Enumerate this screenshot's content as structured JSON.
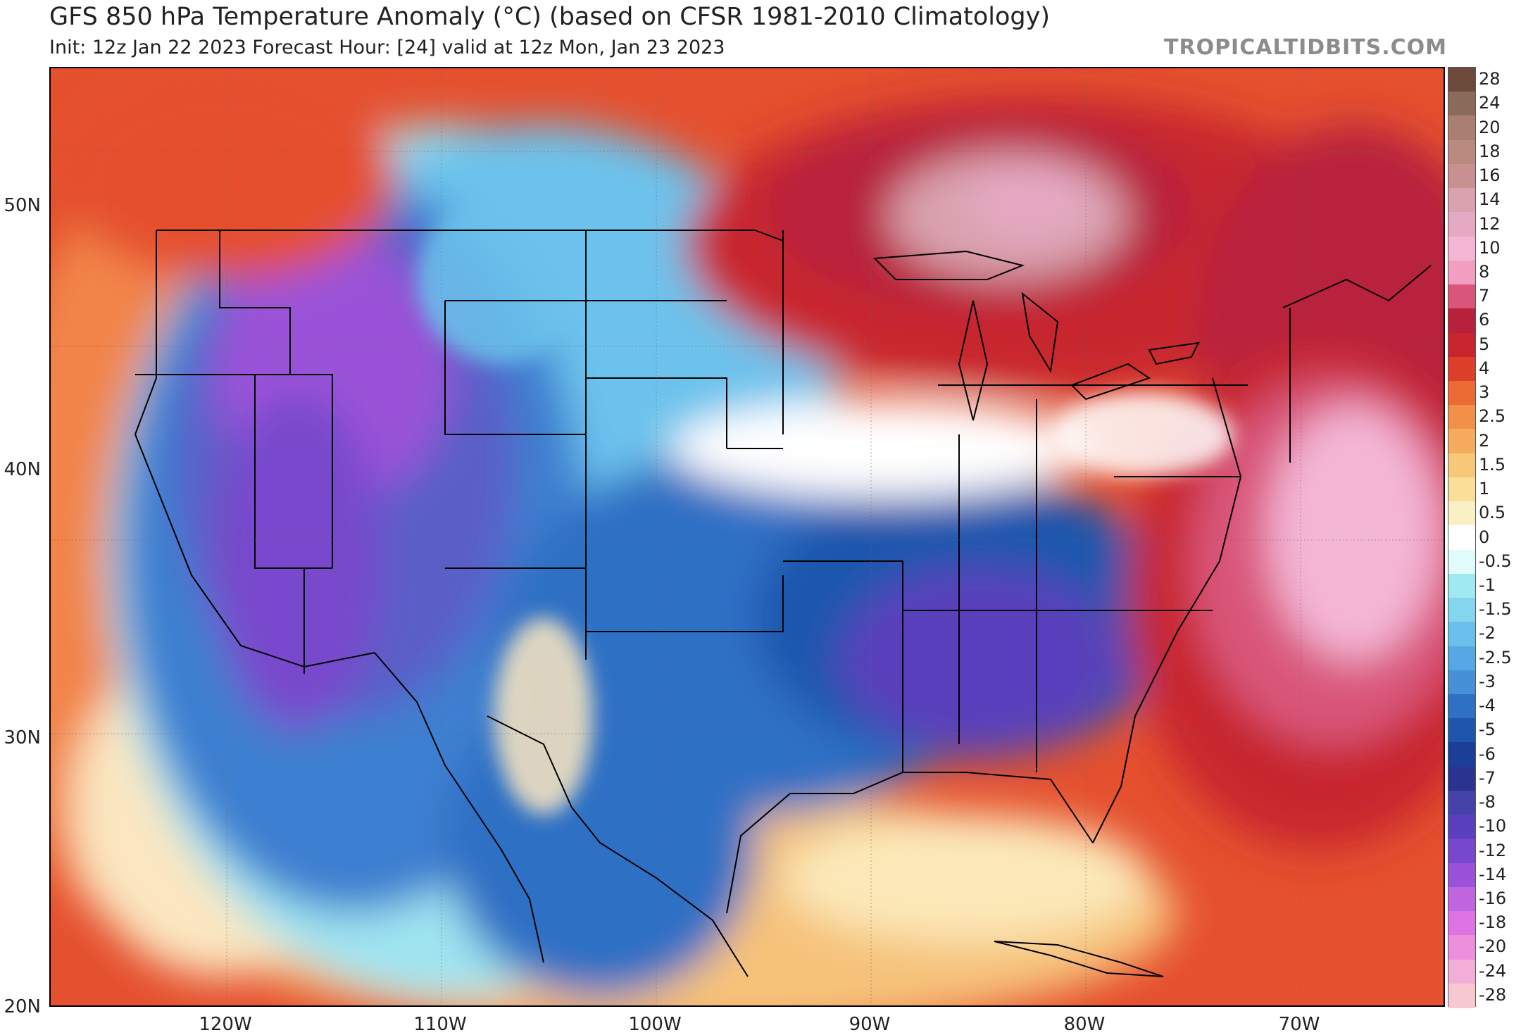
{
  "header": {
    "title": "GFS 850 hPa Temperature Anomaly (°C) (based on CFSR 1981-2010 Climatology)",
    "subtitle": "Init: 12z Jan 22 2023   Forecast Hour: [24]   valid at 12z Mon, Jan 23 2023",
    "watermark": "TROPICALTIDBITS.COM"
  },
  "map": {
    "lat_labels": [
      "50N",
      "40N",
      "30N",
      "20N"
    ],
    "lon_labels": [
      "120W",
      "110W",
      "100W",
      "90W",
      "80W",
      "70W"
    ],
    "regions": [
      {
        "name": "western-cold-core",
        "anomaly": "-10 to -14"
      },
      {
        "name": "southeast-cold-core",
        "anomaly": "-7 to -10"
      },
      {
        "name": "great-lakes-warm",
        "anomaly": "7 to 14"
      },
      {
        "name": "atlantic-warm",
        "anomaly": "8 to 14"
      }
    ]
  },
  "colorbar": {
    "labels": [
      "28",
      "24",
      "20",
      "18",
      "16",
      "14",
      "12",
      "10",
      "8",
      "7",
      "6",
      "5",
      "4",
      "3",
      "2.5",
      "2",
      "1.5",
      "1",
      "0.5",
      "0",
      "-0.5",
      "-1",
      "-1.5",
      "-2",
      "-2.5",
      "-3",
      "-4",
      "-5",
      "-6",
      "-7",
      "-8",
      "-10",
      "-12",
      "-14",
      "-16",
      "-18",
      "-20",
      "-24",
      "-28"
    ],
    "colors": [
      "#6e4a3c",
      "#8a6a5a",
      "#a87f70",
      "#b88a80",
      "#c89090",
      "#d9a2ae",
      "#e5a9c4",
      "#f4b6d5",
      "#f19ec0",
      "#d9567a",
      "#b8203c",
      "#c8252f",
      "#dd3f2a",
      "#ec6a34",
      "#f29048",
      "#f6ac5e",
      "#f7c878",
      "#f9df98",
      "#fbf0c4",
      "#ffffff",
      "#e0fbfb",
      "#9fe9f0",
      "#84d6ee",
      "#6ac0ec",
      "#55a8e4",
      "#4690d8",
      "#2e70c4",
      "#1e56ae",
      "#1b3f98",
      "#2a3490",
      "#4542aa",
      "#5a40bc",
      "#7848cc",
      "#9a52d8",
      "#c064e0",
      "#de74e4",
      "#ec90dc",
      "#f3aed8",
      "#f8c8d0"
    ]
  }
}
